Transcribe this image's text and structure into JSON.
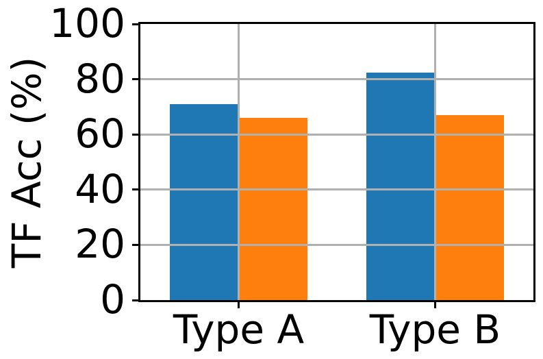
{
  "figure": {
    "background": "#ffffff"
  },
  "chart_data": {
    "type": "bar",
    "title": "",
    "xlabel": "",
    "ylabel": "TF Acc (%)",
    "categories": [
      "Type A",
      "Type B"
    ],
    "series": [
      {
        "name": "blue",
        "color": "#1f77b4",
        "values": [
          71,
          82.5
        ]
      },
      {
        "name": "orange",
        "color": "#ff7f0e",
        "values": [
          66,
          67
        ]
      }
    ],
    "ylim": [
      0,
      100
    ],
    "yticks": [
      0,
      20,
      40,
      60,
      80,
      100
    ],
    "xlim": [
      -0.5,
      1.5
    ],
    "bar_width": 0.35,
    "grid": true,
    "grid_above_bars": true,
    "grid_color": "#b0b0b0",
    "axis_color": "#000000",
    "legend": null
  }
}
